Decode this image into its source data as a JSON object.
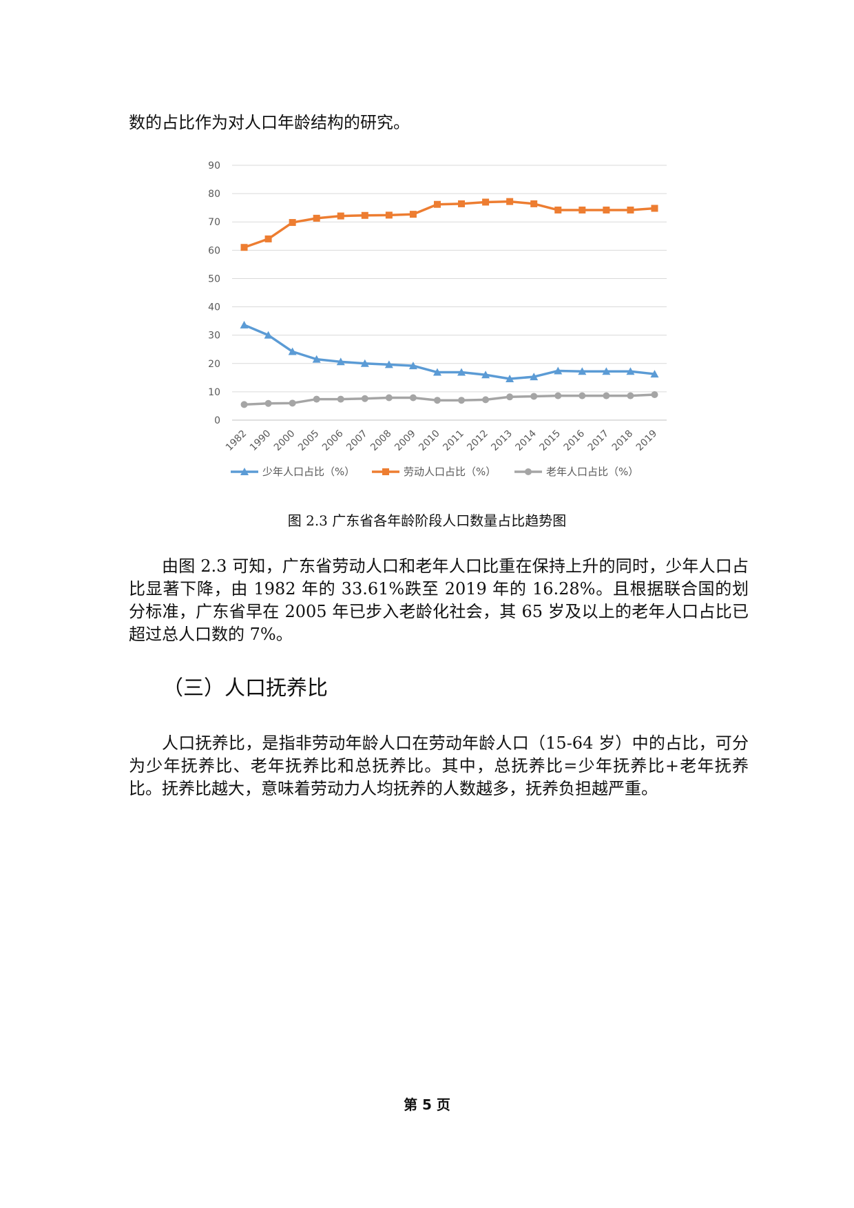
{
  "intro_line": "数的占比作为对人口年龄结构的研究。",
  "figure_caption": "图 2.3 广东省各年龄阶段人口数量占比趋势图",
  "paragraph_1": "由图 2.3 可知，广东省劳动人口和老年人口比重在保持上升的同时，少年人口占比显著下降，由 1982 年的 33.61%跌至 2019 年的 16.28%。且根据联合国的划分标准，广东省早在 2005 年已步入老龄化社会，其 65 岁及以上的老年人口占比已超过总人口数的 7%。",
  "section_heading": "（三）人口抚养比",
  "paragraph_2": "人口抚养比，是指非劳动年龄人口在劳动年龄人口（15-64 岁）中的占比，可分为少年抚养比、老年抚养比和总抚养比。其中，总抚养比=少年抚养比+老年抚养比。抚养比越大，意味着劳动力人均抚养的人数越多，抚养负担越严重。",
  "page_number": "第 5 页",
  "chart_data": {
    "type": "line",
    "title": "",
    "xlabel": "",
    "ylabel": "",
    "categories": [
      "1982",
      "1990",
      "2000",
      "2005",
      "2006",
      "2007",
      "2008",
      "2009",
      "2010",
      "2011",
      "2012",
      "2013",
      "2014",
      "2015",
      "2016",
      "2017",
      "2018",
      "2019"
    ],
    "ylim": [
      0,
      90
    ],
    "yticks": [
      "0",
      "10",
      "20",
      "30",
      "40",
      "50",
      "60",
      "70",
      "80",
      "90"
    ],
    "grid": true,
    "legend_position": "bottom",
    "series": [
      {
        "name": "少年人口占比（%）",
        "color": "#5b9bd5",
        "marker": "triangle",
        "values": [
          33.61,
          30.0,
          24.2,
          21.5,
          20.6,
          20.0,
          19.6,
          19.2,
          16.9,
          16.9,
          16.0,
          14.6,
          15.3,
          17.4,
          17.2,
          17.2,
          17.2,
          16.28
        ]
      },
      {
        "name": "劳动人口占比（%）",
        "color": "#ed7d31",
        "marker": "square",
        "values": [
          61.0,
          64.0,
          69.8,
          71.3,
          72.1,
          72.3,
          72.4,
          72.7,
          76.2,
          76.4,
          77.0,
          77.2,
          76.4,
          74.2,
          74.2,
          74.2,
          74.2,
          74.8
        ]
      },
      {
        "name": "老年人口占比（%）",
        "color": "#a5a5a5",
        "marker": "circle",
        "values": [
          5.5,
          5.9,
          6.0,
          7.4,
          7.4,
          7.6,
          7.9,
          7.9,
          7.0,
          7.0,
          7.2,
          8.2,
          8.4,
          8.6,
          8.6,
          8.6,
          8.6,
          9.0
        ]
      }
    ]
  }
}
